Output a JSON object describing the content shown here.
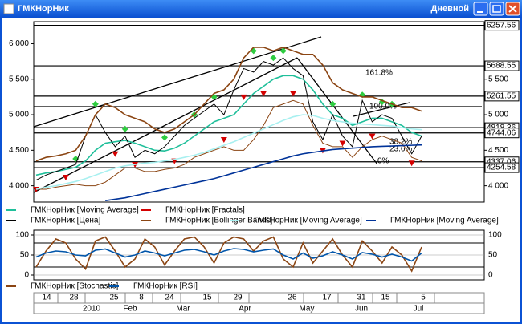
{
  "window": {
    "title": "ГМКНорНик",
    "period": "Дневной"
  },
  "chart_data": [
    {
      "type": "line",
      "ylim": [
        3770,
        6310
      ],
      "yticks": [
        {
          "value": 4000,
          "label": "4 000"
        },
        {
          "value": 4500,
          "label": "4 500"
        },
        {
          "value": 5000,
          "label": "5 000"
        },
        {
          "value": 5500,
          "label": "5 500"
        },
        {
          "value": 6000,
          "label": "6 000"
        }
      ],
      "y2lim": [
        3770,
        6310
      ],
      "y2ticks": [
        {
          "value": 4000,
          "label": "4 000"
        },
        {
          "value": 4500,
          "label": "4 500"
        },
        {
          "value": 5000,
          "label": "5 000"
        },
        {
          "value": 5500,
          "label": "5 500"
        }
      ],
      "levels": [
        6257.56,
        5688.55,
        5261.55,
        4818.36,
        4744.06,
        4337.06,
        4254.58
      ],
      "annotations": [
        "161.8%",
        "100.0%",
        "38.2%",
        "23.6%",
        "0%"
      ],
      "series": [
        {
          "name": "ГМКНорНик [Moving Average]",
          "color": "#1fbf9a",
          "values": [
            4150,
            4180,
            4200,
            4230,
            4260,
            4350,
            4500,
            4600,
            4620,
            4640,
            4600,
            4550,
            4500,
            4490,
            4530,
            4600,
            4700,
            4800,
            4900,
            4950,
            5000,
            5150,
            5300,
            5400,
            5500,
            5550,
            5550,
            5500,
            5350,
            5150,
            5000,
            4950,
            4850,
            4900,
            4950,
            4950,
            4900,
            4850,
            4750,
            4700
          ]
        },
        {
          "name": "ГМКНорНик [Fractals]",
          "color": "#d40000",
          "up_color": "#2ecc40",
          "up": [
            null,
            null,
            null,
            null,
            4380,
            null,
            5150,
            null,
            null,
            4800,
            null,
            null,
            null,
            4680,
            null,
            null,
            5000,
            null,
            5250,
            null,
            null,
            null,
            5900,
            null,
            5800,
            5900,
            null,
            null,
            null,
            null,
            5150,
            null,
            null,
            5280,
            null,
            5180,
            5150,
            null,
            null,
            null
          ],
          "down": [
            3950,
            null,
            null,
            4120,
            null,
            null,
            null,
            null,
            4450,
            null,
            4300,
            null,
            null,
            null,
            4350,
            null,
            null,
            null,
            null,
            4650,
            null,
            5250,
            null,
            5300,
            null,
            null,
            5300,
            null,
            null,
            4500,
            null,
            4600,
            null,
            null,
            4700,
            null,
            null,
            null,
            4320,
            null
          ]
        },
        {
          "name": "ГМКНорНик [Цена]",
          "color": "#000000",
          "values": [
            4080,
            4150,
            4200,
            4250,
            4300,
            4700,
            5000,
            4750,
            4550,
            4700,
            4400,
            4500,
            4450,
            4550,
            4700,
            4850,
            4950,
            5050,
            5150,
            5000,
            5350,
            5650,
            5600,
            5750,
            5700,
            5800,
            5650,
            5550,
            4900,
            4650,
            5000,
            4700,
            4550,
            5200,
            4900,
            5000,
            4950,
            4700,
            4450,
            4700
          ]
        },
        {
          "name": "ГМКНорНик [Bollinger Bands]",
          "color": "#8b4513",
          "values": [
            4350,
            4400,
            4420,
            4450,
            4500,
            4700,
            5000,
            5150,
            5100,
            5000,
            4950,
            4900,
            4800,
            4750,
            4800,
            4900,
            5000,
            5150,
            5300,
            5350,
            5500,
            5800,
            5950,
            5950,
            5900,
            5950,
            5900,
            5850,
            5850,
            5700,
            5450,
            5350,
            5300,
            5250,
            5250,
            5200,
            5150,
            5100,
            5100,
            5050
          ],
          "lower": [
            3950,
            3950,
            3980,
            4000,
            4020,
            4000,
            4000,
            4050,
            4150,
            4250,
            4250,
            4200,
            4200,
            4230,
            4250,
            4300,
            4400,
            4450,
            4500,
            4550,
            4500,
            4500,
            4650,
            4850,
            5100,
            5150,
            5200,
            5150,
            4850,
            4600,
            4550,
            4550,
            4400,
            4550,
            4650,
            4700,
            4650,
            4600,
            4400,
            4350
          ]
        },
        {
          "name": "ГМКНорНик [Moving Average]",
          "color": "#a8f0f0",
          "values": [
            3950,
            3980,
            4000,
            4030,
            4060,
            4100,
            4150,
            4200,
            4250,
            4280,
            4300,
            4320,
            4330,
            4350,
            4370,
            4400,
            4430,
            4470,
            4520,
            4570,
            4620,
            4680,
            4740,
            4800,
            4860,
            4920,
            4970,
            5000,
            4990,
            4950,
            4920,
            4900,
            4880,
            4870,
            4860,
            4850,
            4840,
            4820,
            4800,
            4790
          ]
        },
        {
          "name": "ГМКНорНик [Moving Average]",
          "color": "#003399",
          "values": [
            null,
            null,
            null,
            null,
            null,
            null,
            null,
            3790,
            3810,
            3830,
            3860,
            3890,
            3920,
            3950,
            3980,
            4010,
            4040,
            4070,
            4100,
            4140,
            4180,
            4220,
            4260,
            4300,
            4340,
            4380,
            4420,
            4450,
            4470,
            4490,
            4510,
            4520,
            4530,
            4540,
            4550,
            4555,
            4560,
            4565,
            4570,
            4575
          ]
        }
      ]
    },
    {
      "type": "line",
      "ylim": [
        -12,
        112
      ],
      "yticks": [
        0,
        50,
        100
      ],
      "hlines": [
        80,
        20
      ],
      "series": [
        {
          "name": "ГМКНорНик [Stochastic]",
          "color": "#8b4513",
          "values": [
            20,
            60,
            90,
            80,
            40,
            15,
            85,
            95,
            60,
            20,
            40,
            90,
            70,
            25,
            60,
            90,
            95,
            70,
            30,
            80,
            95,
            90,
            60,
            85,
            95,
            40,
            20,
            80,
            30,
            60,
            90,
            50,
            20,
            85,
            60,
            30,
            70,
            50,
            10,
            70
          ]
        },
        {
          "name": "ГМКНорНик [RSI]",
          "color": "#0055aa",
          "values": [
            45,
            55,
            60,
            58,
            50,
            48,
            62,
            65,
            55,
            45,
            50,
            60,
            55,
            48,
            55,
            62,
            64,
            58,
            50,
            60,
            66,
            64,
            58,
            62,
            65,
            50,
            40,
            55,
            42,
            48,
            58,
            50,
            40,
            56,
            52,
            45,
            52,
            45,
            35,
            55
          ]
        }
      ]
    }
  ],
  "date_ticks": [
    "14",
    "28",
    "25",
    "8",
    "24",
    "15",
    "29",
    "26",
    "17",
    "31",
    "15",
    "5"
  ],
  "date_months": [
    "2010",
    "Feb",
    "Mar",
    "Apr",
    "May",
    "Jun",
    "Jul"
  ]
}
